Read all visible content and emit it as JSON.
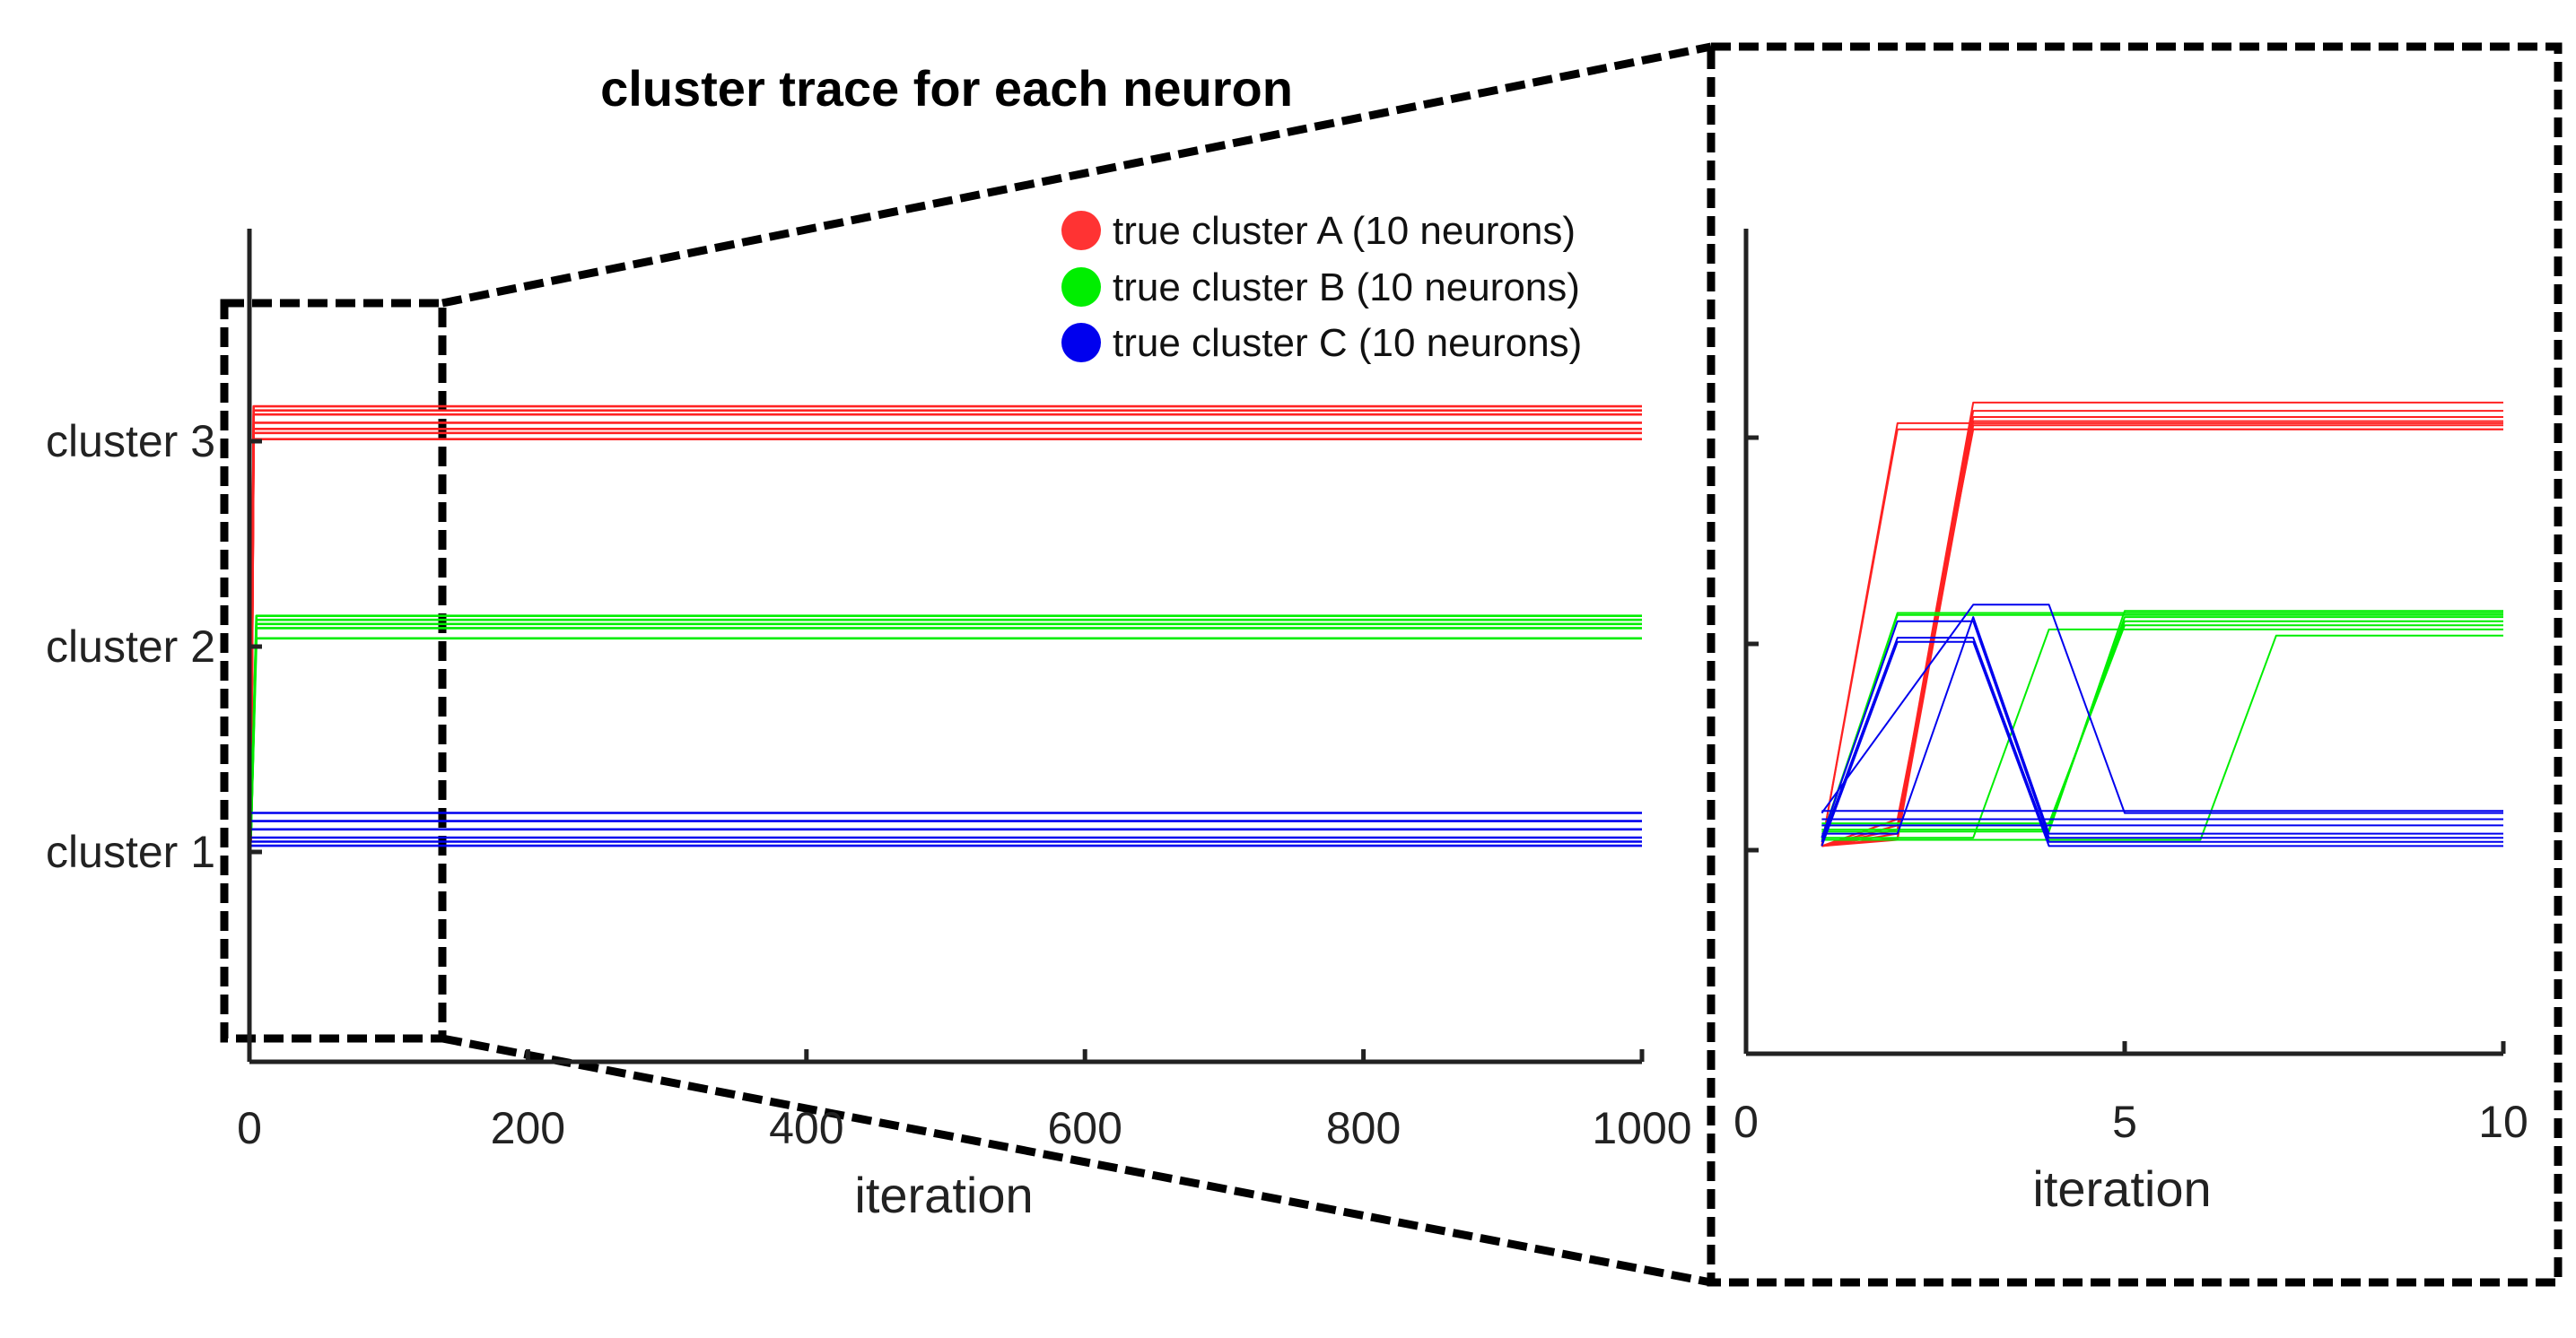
{
  "chart_data": [
    {
      "type": "line",
      "title": "cluster trace for each neuron",
      "xlabel": "iteration",
      "ylabel": "",
      "xlim": [
        0,
        1000
      ],
      "ylim": [
        0,
        4
      ],
      "xticks": [
        0,
        200,
        400,
        600,
        800,
        1000
      ],
      "yticks": [
        {
          "value": 1,
          "label": "cluster 1"
        },
        {
          "value": 2,
          "label": "cluster 2"
        },
        {
          "value": 3,
          "label": "cluster 3"
        }
      ],
      "legend": {
        "placement": "top-right",
        "entries": [
          {
            "label": "true cluster A (10 neurons)",
            "color": "#ff3333"
          },
          {
            "label": "true cluster B (10 neurons)",
            "color": "#00ee00"
          },
          {
            "label": "true cluster C (10 neurons)",
            "color": "#0000ee"
          }
        ]
      },
      "series": [
        {
          "color": "#ff2222",
          "x": [
            1,
            3,
            1000
          ],
          "y": [
            1.05,
            3.01,
            3.01
          ]
        },
        {
          "color": "#ff2222",
          "x": [
            1,
            3,
            1000
          ],
          "y": [
            1.05,
            3.04,
            3.04
          ]
        },
        {
          "color": "#ff2222",
          "x": [
            1,
            3,
            1000
          ],
          "y": [
            1.05,
            3.06,
            3.06
          ]
        },
        {
          "color": "#ff2222",
          "x": [
            1,
            3,
            1000
          ],
          "y": [
            1.05,
            3.09,
            3.09
          ]
        },
        {
          "color": "#ff2222",
          "x": [
            1,
            3,
            1000
          ],
          "y": [
            1.05,
            3.13,
            3.13
          ]
        },
        {
          "color": "#ff2222",
          "x": [
            1,
            3,
            1000
          ],
          "y": [
            1.05,
            3.15,
            3.15
          ]
        },
        {
          "color": "#ff2222",
          "x": [
            1,
            3,
            1000
          ],
          "y": [
            1.05,
            3.17,
            3.17
          ]
        },
        {
          "color": "#00ee00",
          "x": [
            1,
            5,
            1000
          ],
          "y": [
            1.08,
            2.04,
            2.04
          ]
        },
        {
          "color": "#00ee00",
          "x": [
            1,
            5,
            1000
          ],
          "y": [
            1.08,
            2.09,
            2.09
          ]
        },
        {
          "color": "#00ee00",
          "x": [
            1,
            5,
            1000
          ],
          "y": [
            1.08,
            2.11,
            2.11
          ]
        },
        {
          "color": "#00ee00",
          "x": [
            1,
            5,
            1000
          ],
          "y": [
            1.08,
            2.13,
            2.13
          ]
        },
        {
          "color": "#00ee00",
          "x": [
            1,
            5,
            1000
          ],
          "y": [
            1.08,
            2.15,
            2.15
          ]
        },
        {
          "color": "#0000ee",
          "x": [
            1,
            5,
            1000
          ],
          "y": [
            1.03,
            1.03,
            1.03
          ]
        },
        {
          "color": "#0000ee",
          "x": [
            1,
            5,
            1000
          ],
          "y": [
            1.05,
            1.05,
            1.05
          ]
        },
        {
          "color": "#0000ee",
          "x": [
            1,
            5,
            1000
          ],
          "y": [
            1.07,
            1.07,
            1.07
          ]
        },
        {
          "color": "#0000ee",
          "x": [
            1,
            5,
            1000
          ],
          "y": [
            1.11,
            1.11,
            1.11
          ]
        },
        {
          "color": "#0000ee",
          "x": [
            1,
            5,
            1000
          ],
          "y": [
            1.15,
            1.15,
            1.15
          ]
        },
        {
          "color": "#0000ee",
          "x": [
            1,
            5,
            1000
          ],
          "y": [
            1.19,
            1.19,
            1.19
          ]
        }
      ]
    },
    {
      "type": "line",
      "title": "",
      "xlabel": "iteration",
      "ylabel": "",
      "xlim": [
        0,
        10
      ],
      "ylim": [
        0,
        4
      ],
      "xticks": [
        0,
        5,
        10
      ],
      "yticks": [
        {
          "value": 1
        },
        {
          "value": 2
        },
        {
          "value": 3
        }
      ],
      "series": [
        {
          "color": "#ff2222",
          "x": [
            1,
            2,
            3,
            10
          ],
          "y": [
            1.02,
            1.12,
            3.17,
            3.17
          ]
        },
        {
          "color": "#ff2222",
          "x": [
            1,
            2,
            3,
            10
          ],
          "y": [
            1.02,
            1.1,
            3.13,
            3.13
          ]
        },
        {
          "color": "#ff2222",
          "x": [
            1,
            2,
            3,
            10
          ],
          "y": [
            1.02,
            1.08,
            3.1,
            3.1
          ]
        },
        {
          "color": "#ff2222",
          "x": [
            1,
            2,
            3,
            10
          ],
          "y": [
            1.02,
            1.06,
            3.08,
            3.08
          ]
        },
        {
          "color": "#ff2222",
          "x": [
            1,
            2,
            3,
            10
          ],
          "y": [
            1.02,
            1.05,
            3.06,
            3.06
          ]
        },
        {
          "color": "#ff2222",
          "x": [
            1,
            2,
            3,
            10
          ],
          "y": [
            1.02,
            1.15,
            3.04,
            3.04
          ]
        },
        {
          "color": "#ff2222",
          "x": [
            1,
            2,
            3,
            10
          ],
          "y": [
            1.02,
            3.07,
            3.07,
            3.07
          ]
        },
        {
          "color": "#ff2222",
          "x": [
            1,
            2,
            3,
            10
          ],
          "y": [
            1.02,
            3.04,
            3.04,
            3.04
          ]
        },
        {
          "color": "#00ee00",
          "x": [
            1,
            2,
            4,
            5,
            10
          ],
          "y": [
            1.05,
            2.15,
            2.15,
            2.15,
            2.15
          ]
        },
        {
          "color": "#00ee00",
          "x": [
            1,
            2,
            4,
            5,
            10
          ],
          "y": [
            1.06,
            2.14,
            2.14,
            2.14,
            2.14
          ]
        },
        {
          "color": "#00ee00",
          "x": [
            1,
            2,
            4,
            5,
            10
          ],
          "y": [
            1.09,
            1.09,
            1.09,
            2.16,
            2.16
          ]
        },
        {
          "color": "#00ee00",
          "x": [
            1,
            2,
            4,
            5,
            10
          ],
          "y": [
            1.1,
            1.1,
            1.1,
            2.13,
            2.13
          ]
        },
        {
          "color": "#00ee00",
          "x": [
            1,
            2,
            4,
            5,
            10
          ],
          "y": [
            1.12,
            1.12,
            1.12,
            2.11,
            2.11
          ]
        },
        {
          "color": "#00ee00",
          "x": [
            1,
            2,
            4,
            5,
            10
          ],
          "y": [
            1.13,
            1.13,
            1.13,
            2.09,
            2.09
          ]
        },
        {
          "color": "#00ee00",
          "x": [
            1,
            2,
            3,
            4,
            10
          ],
          "y": [
            1.06,
            1.06,
            1.06,
            2.07,
            2.07
          ]
        },
        {
          "color": "#00ee00",
          "x": [
            1,
            6,
            7,
            10
          ],
          "y": [
            1.05,
            1.05,
            2.04,
            2.04
          ]
        },
        {
          "color": "#0000ee",
          "x": [
            1,
            2,
            3,
            4,
            10
          ],
          "y": [
            1.02,
            2.01,
            2.01,
            1.02,
            1.02
          ]
        },
        {
          "color": "#0000ee",
          "x": [
            1,
            2,
            3,
            4,
            10
          ],
          "y": [
            1.04,
            2.03,
            2.03,
            1.04,
            1.04
          ]
        },
        {
          "color": "#0000ee",
          "x": [
            1,
            2,
            3,
            4,
            10
          ],
          "y": [
            1.06,
            2.11,
            2.11,
            1.06,
            1.06
          ]
        },
        {
          "color": "#0000ee",
          "x": [
            1,
            2,
            3,
            4,
            10
          ],
          "y": [
            1.08,
            1.08,
            2.13,
            1.08,
            1.08
          ]
        },
        {
          "color": "#0000ee",
          "x": [
            1,
            3,
            4,
            5,
            10
          ],
          "y": [
            1.18,
            2.19,
            2.19,
            1.18,
            1.18
          ]
        },
        {
          "color": "#0000ee",
          "x": [
            1,
            2,
            10
          ],
          "y": [
            1.12,
            1.12,
            1.12
          ]
        },
        {
          "color": "#0000ee",
          "x": [
            1,
            2,
            10
          ],
          "y": [
            1.15,
            1.15,
            1.15
          ]
        },
        {
          "color": "#0000ee",
          "x": [
            1,
            2,
            10
          ],
          "y": [
            1.19,
            1.19,
            1.19
          ]
        }
      ]
    }
  ]
}
